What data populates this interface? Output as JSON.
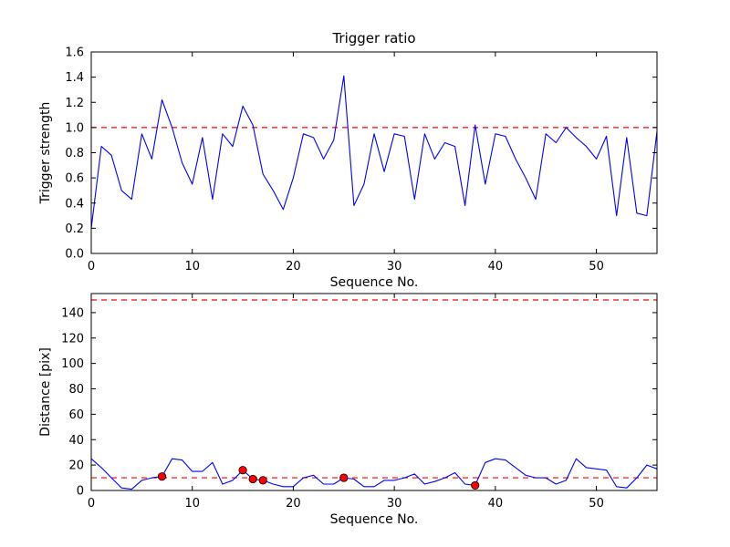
{
  "figure": {
    "background": "#ffffff",
    "line_color": "#0000ff",
    "dashed_color": "#ff0000",
    "marker_face_color": "#ff0000",
    "marker_edge_color": "#000000",
    "axis_color": "#000000"
  },
  "chart_data": [
    {
      "type": "line",
      "title": "Trigger ratio",
      "xlabel": "Sequence No.",
      "ylabel": "Trigger strength",
      "xlim": [
        0,
        56
      ],
      "ylim": [
        0.0,
        1.6
      ],
      "xticks": [
        0,
        10,
        20,
        30,
        40,
        50
      ],
      "xtick_labels": [
        "0",
        "10",
        "20",
        "30",
        "40",
        "50"
      ],
      "yticks": [
        0.0,
        0.2,
        0.4,
        0.6,
        0.8,
        1.0,
        1.2,
        1.4,
        1.6
      ],
      "ytick_labels": [
        "0.0",
        "0.2",
        "0.4",
        "0.6",
        "0.8",
        "1.0",
        "1.2",
        "1.4",
        "1.6"
      ],
      "hlines": [
        1.0
      ],
      "grid": false,
      "legend": null,
      "x": [
        0,
        1,
        2,
        3,
        4,
        5,
        6,
        7,
        8,
        9,
        10,
        11,
        12,
        13,
        14,
        15,
        16,
        17,
        18,
        19,
        20,
        21,
        22,
        23,
        24,
        25,
        26,
        27,
        28,
        29,
        30,
        31,
        32,
        33,
        34,
        35,
        36,
        37,
        38,
        39,
        40,
        41,
        42,
        43,
        44,
        45,
        46,
        47,
        48,
        49,
        50,
        51,
        52,
        53,
        54,
        55,
        56
      ],
      "y": [
        0.2,
        0.85,
        0.78,
        0.5,
        0.43,
        0.95,
        0.75,
        1.22,
        1.0,
        0.72,
        0.55,
        0.92,
        0.43,
        0.95,
        0.85,
        1.17,
        1.02,
        0.63,
        0.5,
        0.35,
        0.6,
        0.95,
        0.92,
        0.75,
        0.9,
        1.41,
        0.38,
        0.55,
        0.95,
        0.65,
        0.95,
        0.93,
        0.43,
        0.95,
        0.75,
        0.88,
        0.85,
        0.38,
        1.02,
        0.55,
        0.95,
        0.93,
        0.75,
        0.6,
        0.43,
        0.95,
        0.88,
        1.0,
        0.92,
        0.85,
        0.75,
        0.93,
        0.3,
        0.92,
        0.32,
        0.3,
        0.97
      ]
    },
    {
      "type": "line",
      "title": "",
      "xlabel": "Sequence No.",
      "ylabel": "Distance [pix]",
      "xlim": [
        0,
        56
      ],
      "ylim": [
        0,
        155
      ],
      "xticks": [
        0,
        10,
        20,
        30,
        40,
        50
      ],
      "xtick_labels": [
        "0",
        "10",
        "20",
        "30",
        "40",
        "50"
      ],
      "yticks": [
        0,
        20,
        40,
        60,
        80,
        100,
        120,
        140
      ],
      "ytick_labels": [
        "0",
        "20",
        "40",
        "60",
        "80",
        "100",
        "120",
        "140"
      ],
      "hlines": [
        150,
        10
      ],
      "grid": false,
      "legend": null,
      "x": [
        0,
        1,
        2,
        3,
        4,
        5,
        6,
        7,
        8,
        9,
        10,
        11,
        12,
        13,
        14,
        15,
        16,
        17,
        18,
        19,
        20,
        21,
        22,
        23,
        24,
        25,
        26,
        27,
        28,
        29,
        30,
        31,
        32,
        33,
        34,
        35,
        36,
        37,
        38,
        39,
        40,
        41,
        42,
        43,
        44,
        45,
        46,
        47,
        48,
        49,
        50,
        51,
        52,
        53,
        54,
        55,
        56
      ],
      "y": [
        25,
        18,
        10,
        2,
        1,
        8,
        10,
        11,
        25,
        24,
        15,
        15,
        22,
        5,
        8,
        16,
        9,
        8,
        5,
        3,
        3,
        10,
        12,
        5,
        5,
        10,
        9,
        3,
        3,
        8,
        8,
        10,
        13,
        5,
        7,
        10,
        14,
        5,
        4,
        22,
        25,
        24,
        18,
        12,
        10,
        10,
        5,
        8,
        25,
        18,
        17,
        16,
        3,
        2,
        10,
        20,
        17
      ],
      "markers": {
        "x": [
          7,
          15,
          16,
          17,
          25,
          38
        ],
        "y": [
          11,
          16,
          9,
          8,
          10,
          4
        ]
      }
    }
  ]
}
